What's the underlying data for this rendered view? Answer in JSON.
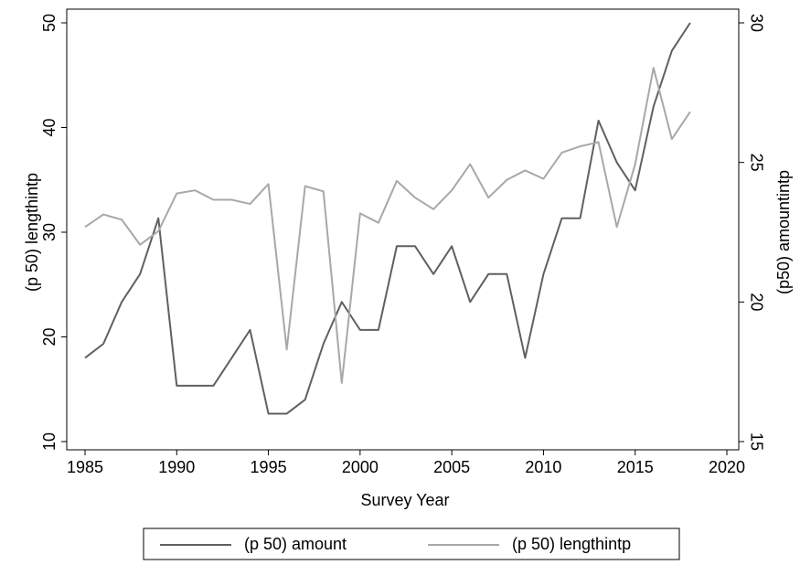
{
  "chart_data": {
    "type": "line",
    "xlabel": "Survey Year",
    "ylabel": "(p 50) lengthintp",
    "y2label": "(p50) amountintp",
    "x": [
      1985,
      1986,
      1987,
      1988,
      1989,
      1990,
      1991,
      1992,
      1993,
      1994,
      1995,
      1996,
      1997,
      1998,
      1999,
      2000,
      2001,
      2002,
      2003,
      2004,
      2005,
      2006,
      2007,
      2008,
      2009,
      2010,
      2011,
      2012,
      2013,
      2014,
      2015,
      2016,
      2017,
      2018
    ],
    "xlim": [
      1985,
      2020
    ],
    "xticks": [
      1985,
      1990,
      1995,
      2000,
      2005,
      2010,
      2015,
      2020
    ],
    "ylim": [
      10,
      50
    ],
    "yticks": [
      10,
      20,
      30,
      40,
      50
    ],
    "y2lim": [
      15,
      30
    ],
    "y2ticks": [
      15,
      20,
      25,
      30
    ],
    "series": [
      {
        "name": "(p 50) amount",
        "color": "#606060",
        "axis": "y2",
        "values": [
          18,
          18.5,
          20,
          21,
          23,
          17,
          17,
          17,
          18,
          19,
          16,
          16,
          16.5,
          18.5,
          20,
          19,
          19,
          22,
          22,
          21,
          22,
          20,
          21,
          21,
          18,
          21,
          23,
          23,
          26.5,
          25,
          24,
          27,
          29,
          30
        ]
      },
      {
        "name": "(p 50) lengthintp",
        "color": "#a8a8a8",
        "values": [
          30.5,
          31.7,
          31.2,
          28.8,
          30.1,
          33.7,
          34,
          33.1,
          33.1,
          32.7,
          34.6,
          18.8,
          34.4,
          33.9,
          15.6,
          31.8,
          30.9,
          34.9,
          33.3,
          32.2,
          34,
          36.5,
          33.3,
          35,
          35.9,
          35.1,
          37.6,
          38.2,
          38.6,
          30.5,
          36.5,
          45.7,
          38.9,
          41.5
        ]
      }
    ]
  }
}
